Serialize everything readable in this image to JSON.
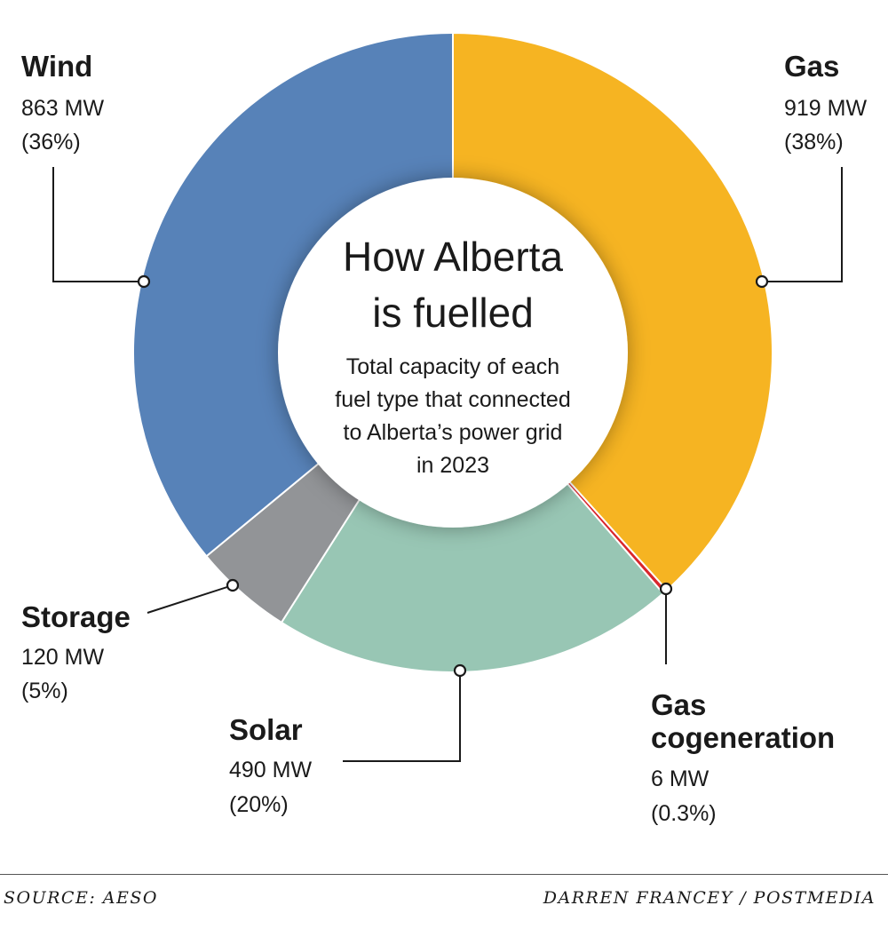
{
  "chart_data": {
    "type": "pie",
    "title_lines": [
      "How Alberta",
      "is fuelled"
    ],
    "subtitle_lines": [
      "Total capacity of each",
      "fuel type that connected",
      "to Alberta’s power grid",
      "in 2023"
    ],
    "unit": "MW",
    "slices": [
      {
        "name": "Gas",
        "value": 919,
        "value_label": "919 MW",
        "pct_label": "(38%)",
        "color": "#f6b422"
      },
      {
        "name": "Gas cogeneration",
        "name_lines": [
          "Gas",
          "cogeneration"
        ],
        "value": 6,
        "value_label": "6 MW",
        "pct_label": "(0.3%)",
        "color": "#d9262c"
      },
      {
        "name": "Solar",
        "value": 490,
        "value_label": "490 MW",
        "pct_label": "(20%)",
        "color": "#98c6b4"
      },
      {
        "name": "Storage",
        "value": 120,
        "value_label": "120 MW",
        "pct_label": "(5%)",
        "color": "#929497"
      },
      {
        "name": "Wind",
        "value": 863,
        "value_label": "863 MW",
        "pct_label": "(36%)",
        "color": "#5782b8"
      }
    ],
    "style": "donut"
  },
  "footer": {
    "source": "SOURCE: AESO",
    "credit": "DARREN FRANCEY / POSTMEDIA"
  }
}
